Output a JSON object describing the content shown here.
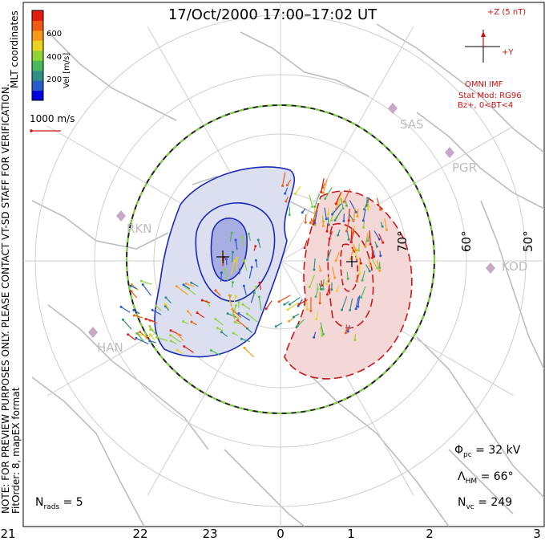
{
  "title": "17/Oct/2000 17:00–17:02 UT",
  "coordinate_label": "MLT coordinates",
  "preview_note": "NOTE: FOR PREVIEW PURPOSES ONLY. PLEASE CONTACT VT-SD STAFF FOR VERIFICATION.",
  "fit_note": "FitOrder: 8, mapEX format",
  "colorbar": {
    "unit_label": "Vel [m/s]",
    "ticks": [
      "600",
      "400",
      "200"
    ],
    "colors": [
      "#0000e0",
      "#2a5cc8",
      "#2f8f86",
      "#49b85c",
      "#8fd334",
      "#e8d321",
      "#f79a1c",
      "#ee5a13",
      "#e41c10"
    ]
  },
  "vector_scale": "1000 m/s",
  "imf": {
    "z_label": "+Z (5 nT)",
    "y_label": "+Y",
    "source_label": "OMNI IMF",
    "model_line1": "Stat Mod: RG96",
    "model_line2": "Bz+, 0<BT<4",
    "color": "#d01010"
  },
  "stations": [
    "SAS",
    "PGR",
    "RKN",
    "KOD",
    "HAN"
  ],
  "latitudes": [
    "70°",
    "60°",
    "50°"
  ],
  "mlt_labels": [
    "21",
    "22",
    "23",
    "0",
    "1",
    "2",
    "3"
  ],
  "stats": {
    "phi_pc_symbol": "Φ",
    "phi_pc_sub": "pc",
    "phi_pc_value": "= 32 kV",
    "lambda_hm_symbol": "Λ",
    "lambda_hm_sub": "HM",
    "lambda_hm_value": "= 66°",
    "n_vc_symbol": "N",
    "n_vc_sub": "vc",
    "n_vc_value": "= 249",
    "n_rads_symbol": "N",
    "n_rads_sub": "rads",
    "n_rads_value": "= 5"
  },
  "colors": {
    "negative_cell": "#1a2ab8",
    "positive_cell": "#c81818",
    "boundary_dash": "#7bd43b",
    "land": "#bdbdbd",
    "grid": "#cfcfcf"
  }
}
